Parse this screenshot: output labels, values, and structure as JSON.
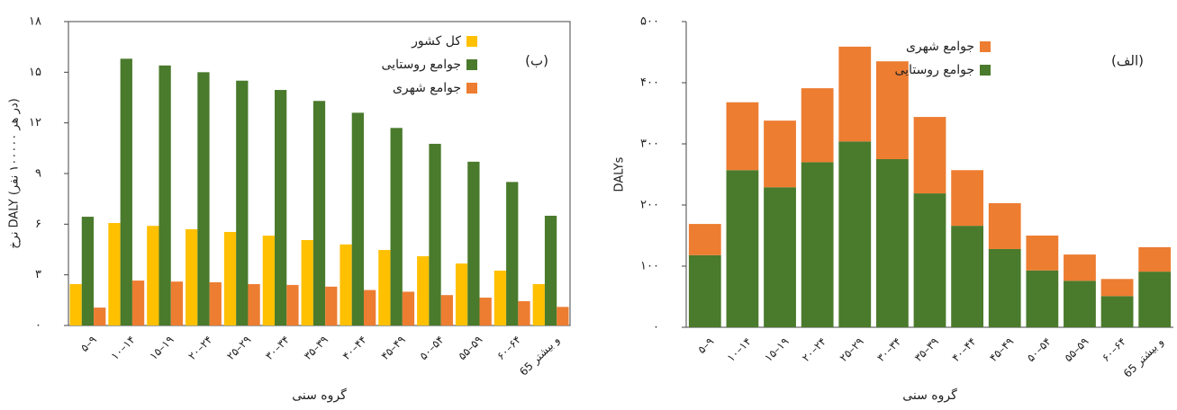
{
  "chart_data": [
    {
      "type": "grouped_bar",
      "y_label": "نرخ DALY (در هر ۱۰۰۰۰۰ نفر)",
      "x_label": "گروه سنی",
      "annotation": "(ب)",
      "categories": [
        "۵–۹",
        "۱۰–۱۴",
        "۱۵–۱۹",
        "۲۰–۲۴",
        "۲۵–۲۹",
        "۳۰–۳۴",
        "۳۵–۳۹",
        "۴۰–۴۴",
        "۴۵–۴۹",
        "۵۰–۵۴",
        "۵۵–۵۹",
        "۶۰–۶۴",
        "65 و بیشتر"
      ],
      "series": [
        {
          "name": "کل کشور",
          "color": "#ffc000",
          "values": [
            2.45,
            6.07,
            5.9,
            5.7,
            5.54,
            5.32,
            5.06,
            4.8,
            4.47,
            4.1,
            3.67,
            3.25,
            2.45
          ]
        },
        {
          "name": "جوامع روستایی",
          "color": "#4a7a2c",
          "values": [
            6.44,
            15.8,
            15.4,
            15.0,
            14.5,
            13.95,
            13.3,
            12.6,
            11.7,
            10.76,
            9.7,
            8.5,
            6.5
          ]
        },
        {
          "name": "جوامع شهری",
          "color": "#ed7d31",
          "values": [
            1.06,
            2.66,
            2.6,
            2.56,
            2.45,
            2.4,
            2.3,
            2.1,
            2.0,
            1.8,
            1.65,
            1.44,
            1.1
          ]
        }
      ],
      "ylim": [
        0,
        18
      ],
      "yticks": [
        {
          "value": 0,
          "label": "۰"
        },
        {
          "value": 3,
          "label": "۳"
        },
        {
          "value": 6,
          "label": "۶"
        },
        {
          "value": 9,
          "label": "۹"
        },
        {
          "value": 12,
          "label": "۱۲"
        },
        {
          "value": 15,
          "label": "۱۵"
        },
        {
          "value": 18,
          "label": "۱۸"
        }
      ],
      "frame": true
    },
    {
      "type": "stacked_bar",
      "y_label": "DALYs",
      "x_label": "گروه سنی",
      "annotation": "(الف)",
      "categories": [
        "۵–۹",
        "۱۰–۱۴",
        "۱۵–۱۹",
        "۲۰–۲۴",
        "۲۵–۲۹",
        "۳۰–۳۴",
        "۳۵–۳۹",
        "۴۰–۴۴",
        "۴۵–۴۹",
        "۵۰–۵۴",
        "۵۵–۵۹",
        "۶۰–۶۴",
        "65 و بیشتر"
      ],
      "series": [
        {
          "name": "جوامع روستایی",
          "color": "#4a7a2c",
          "values": [
            118,
            257,
            229,
            270,
            304,
            275,
            219,
            166,
            128,
            93,
            76,
            51,
            91
          ]
        },
        {
          "name": "جوامع شهری",
          "color": "#ed7d31",
          "values": [
            51,
            111,
            109,
            121,
            155,
            160,
            125,
            91,
            75,
            57,
            43,
            28,
            40
          ]
        }
      ],
      "ylim": [
        0,
        500
      ],
      "yticks": [
        {
          "value": 0,
          "label": "۰"
        },
        {
          "value": 100,
          "label": "۱۰۰"
        },
        {
          "value": 200,
          "label": "۲۰۰"
        },
        {
          "value": 300,
          "label": "۳۰۰"
        },
        {
          "value": 400,
          "label": "۴۰۰"
        },
        {
          "value": 500,
          "label": "۵۰۰"
        }
      ],
      "frame": false
    }
  ]
}
